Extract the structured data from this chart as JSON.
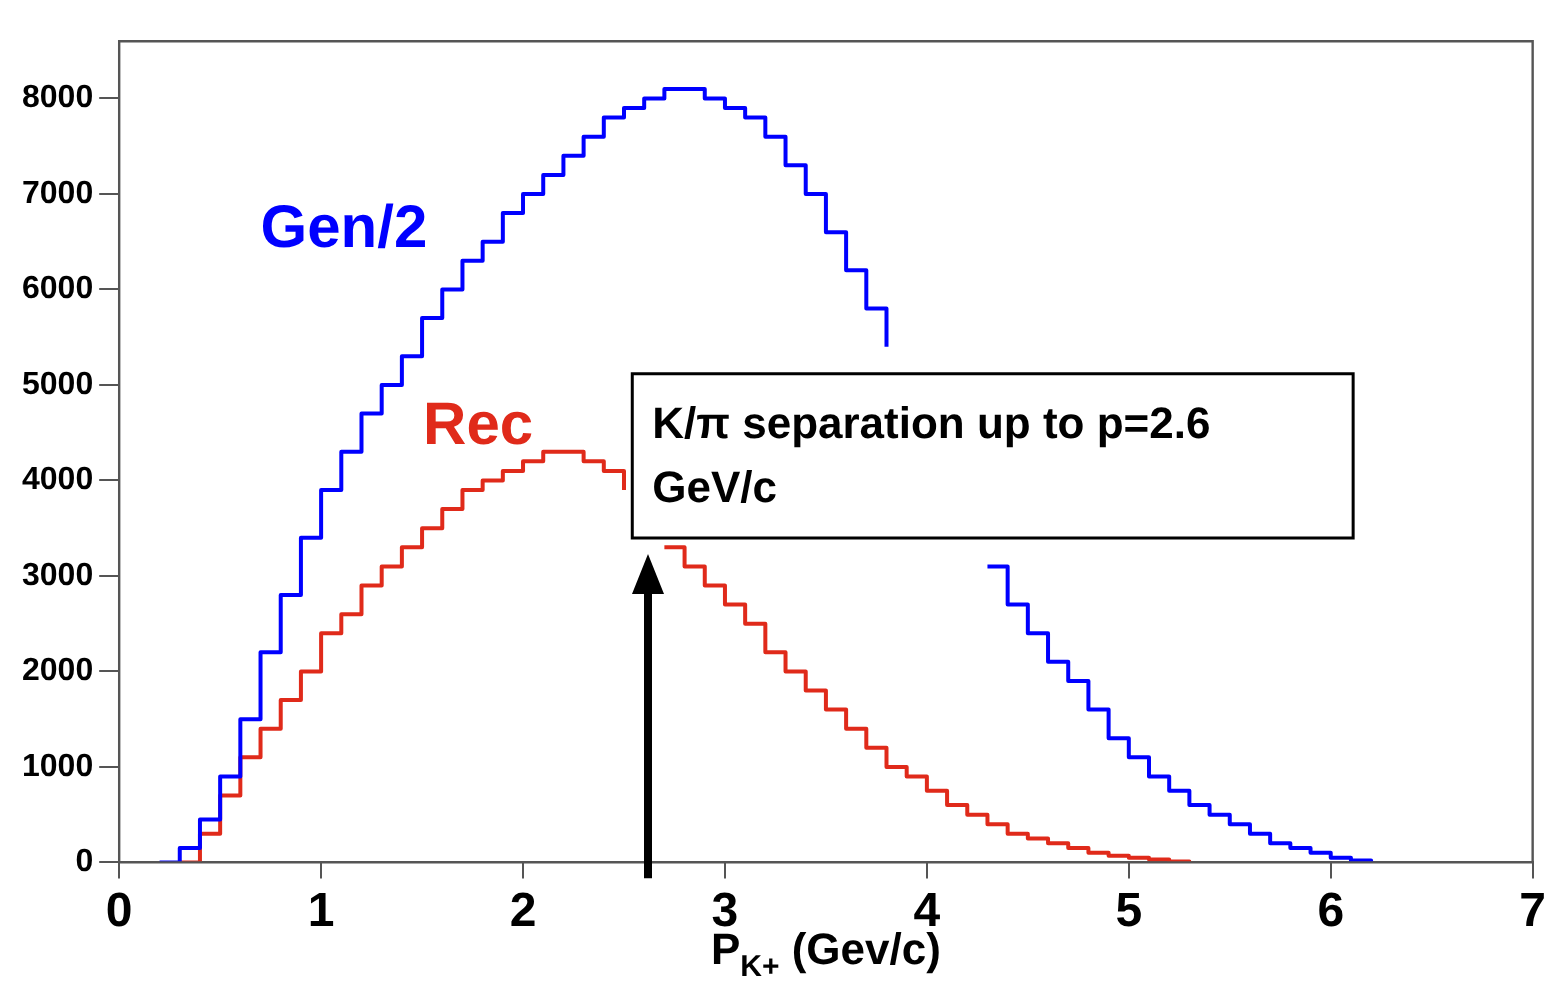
{
  "chart_data": {
    "type": "step",
    "xlabel": "P$_{K+}$ (Gev/c)",
    "series": [
      {
        "name": "Gen/2",
        "color": "#0000ff",
        "x": [
          0.2,
          0.3,
          0.4,
          0.5,
          0.6,
          0.7,
          0.8,
          0.9,
          1.0,
          1.1,
          1.2,
          1.3,
          1.4,
          1.5,
          1.6,
          1.7,
          1.8,
          1.9,
          2.0,
          2.1,
          2.2,
          2.3,
          2.4,
          2.5,
          2.6,
          2.7,
          2.8,
          2.9,
          3.0,
          3.1,
          3.2,
          3.3,
          3.4,
          3.5,
          3.6,
          3.7,
          3.8,
          3.9,
          4.0,
          4.1,
          4.2,
          4.3,
          4.4,
          4.5,
          4.6,
          4.7,
          4.8,
          4.9,
          5.0,
          5.1,
          5.2,
          5.3,
          5.4,
          5.5,
          5.6,
          5.7,
          5.8,
          5.9,
          6.0,
          6.1,
          6.2
        ],
        "values": [
          0,
          150,
          450,
          900,
          1500,
          2200,
          2800,
          3400,
          3900,
          4300,
          4700,
          5000,
          5300,
          5700,
          6000,
          6300,
          6500,
          6800,
          7000,
          7200,
          7400,
          7600,
          7800,
          7900,
          8000,
          8100,
          8100,
          8000,
          7900,
          7800,
          7600,
          7300,
          7000,
          6600,
          6200,
          5800,
          5400,
          null,
          null,
          null,
          null,
          3100,
          2700,
          2400,
          2100,
          1900,
          1600,
          1300,
          1100,
          900,
          750,
          600,
          500,
          400,
          300,
          200,
          150,
          100,
          50,
          20,
          0
        ]
      },
      {
        "name": "Rec",
        "color": "#e02a1a",
        "x": [
          0.3,
          0.4,
          0.5,
          0.6,
          0.7,
          0.8,
          0.9,
          1.0,
          1.1,
          1.2,
          1.3,
          1.4,
          1.5,
          1.6,
          1.7,
          1.8,
          1.9,
          2.0,
          2.1,
          2.2,
          2.3,
          2.4,
          2.5,
          2.6,
          2.7,
          2.8,
          2.9,
          3.0,
          3.1,
          3.2,
          3.3,
          3.4,
          3.5,
          3.6,
          3.7,
          3.8,
          3.9,
          4.0,
          4.1,
          4.2,
          4.3,
          4.4,
          4.5,
          4.6,
          4.7,
          4.8,
          4.9,
          5.0,
          5.1,
          5.2,
          5.3
        ],
        "values": [
          0,
          300,
          700,
          1100,
          1400,
          1700,
          2000,
          2400,
          2600,
          2900,
          3100,
          3300,
          3500,
          3700,
          3900,
          4000,
          4100,
          4200,
          4300,
          4300,
          4200,
          4100,
          3900,
          null,
          3300,
          3100,
          2900,
          2700,
          2500,
          2200,
          2000,
          1800,
          1600,
          1400,
          1200,
          1000,
          900,
          750,
          600,
          500,
          400,
          300,
          250,
          200,
          150,
          100,
          70,
          50,
          30,
          10,
          0
        ]
      }
    ],
    "annotations": [
      "K/π separation up to p=2.6 GeV/c"
    ],
    "xlim": [
      0,
      7
    ],
    "xticks": [
      0,
      1,
      2,
      3,
      4,
      5,
      6,
      7
    ],
    "ylim": [
      0,
      8600
    ],
    "yticks": [
      0,
      1000,
      2000,
      3000,
      4000,
      5000,
      6000,
      7000,
      8000
    ],
    "grid": false,
    "legend": false
  }
}
